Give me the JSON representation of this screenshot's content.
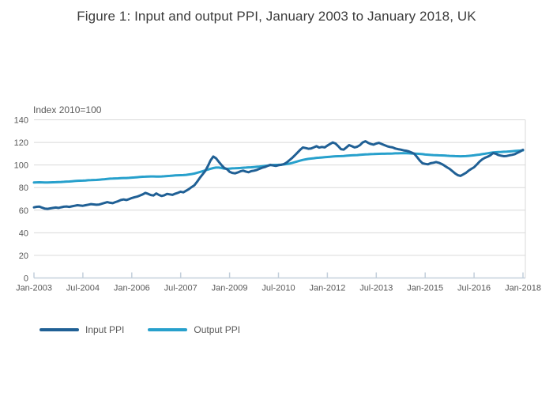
{
  "title": "Figure 1: Input and output PPI, January 2003 to January 2018, UK",
  "colors": {
    "input": "#206095",
    "output": "#27a0cc",
    "grid": "#d9d9d9",
    "axis": "#c3cfdb",
    "tick_text": "#595959"
  },
  "legend": [
    {
      "label": "Input PPI",
      "series": "input"
    },
    {
      "label": "Output PPI",
      "series": "output"
    }
  ],
  "chart_data": {
    "type": "line",
    "title": "Figure 1: Input and output PPI, January 2003 to January 2018, UK",
    "ylabel": "Index 2010=100",
    "xlabel": "",
    "ylim": [
      0,
      140
    ],
    "y_ticks": [
      0,
      20,
      40,
      60,
      80,
      100,
      120,
      140
    ],
    "x_tick_labels": [
      "Jan-2003",
      "Jul-2004",
      "Jan-2006",
      "Jul-2007",
      "Jan-2009",
      "Jul-2010",
      "Jan-2012",
      "Jul-2013",
      "Jan-2015",
      "Jul-2016",
      "Jan-2018"
    ],
    "x_tick_month_index": [
      0,
      18,
      36,
      54,
      72,
      90,
      108,
      126,
      144,
      162,
      180
    ],
    "x_months_total": 180,
    "grid": true,
    "legend_position": "bottom-left",
    "series": [
      {
        "name": "Input PPI",
        "color": "#206095",
        "x_start": "Jan-2003",
        "frequency": "monthly",
        "values": [
          62.5,
          63.0,
          63.2,
          62.2,
          61.4,
          61.2,
          61.6,
          62.0,
          62.4,
          62.0,
          62.6,
          63.1,
          63.3,
          62.9,
          63.4,
          63.9,
          64.4,
          64.1,
          63.9,
          64.4,
          64.9,
          65.4,
          65.1,
          64.8,
          65.0,
          65.7,
          66.4,
          67.1,
          66.6,
          66.2,
          67.2,
          68.0,
          69.0,
          69.5,
          69.0,
          69.8,
          70.8,
          71.5,
          72.0,
          73.0,
          74.0,
          75.3,
          74.5,
          73.4,
          73.0,
          74.8,
          73.5,
          72.6,
          73.2,
          74.4,
          74.0,
          73.6,
          74.6,
          75.4,
          76.4,
          75.8,
          77.2,
          78.6,
          80.4,
          82.0,
          85.0,
          88.5,
          91.5,
          94.5,
          99.0,
          104.0,
          107.5,
          106.0,
          103.0,
          100.0,
          97.5,
          96.4,
          94.0,
          93.0,
          92.6,
          93.4,
          94.4,
          95.0,
          94.2,
          93.6,
          94.6,
          95.0,
          95.6,
          96.6,
          97.6,
          98.2,
          99.2,
          100.2,
          99.6,
          99.2,
          99.8,
          100.2,
          100.8,
          102.2,
          104.2,
          106.2,
          108.5,
          111.0,
          113.5,
          115.5,
          115.0,
          114.4,
          114.6,
          115.6,
          116.6,
          115.4,
          116.0,
          115.6,
          117.2,
          118.6,
          120.0,
          119.0,
          116.6,
          114.0,
          113.6,
          115.6,
          117.6,
          116.6,
          115.6,
          116.2,
          117.6,
          120.0,
          121.0,
          119.6,
          118.6,
          118.0,
          119.0,
          119.6,
          118.6,
          117.6,
          116.6,
          116.0,
          115.6,
          114.6,
          114.0,
          113.6,
          113.0,
          112.6,
          112.0,
          111.0,
          110.0,
          107.0,
          104.0,
          101.6,
          101.0,
          100.6,
          101.6,
          102.0,
          102.6,
          102.0,
          101.0,
          99.6,
          98.0,
          96.6,
          94.6,
          92.6,
          91.0,
          90.4,
          91.6,
          93.0,
          95.0,
          96.6,
          98.0,
          100.4,
          103.0,
          105.0,
          106.4,
          107.4,
          108.6,
          110.6,
          110.0,
          108.8,
          108.2,
          107.8,
          108.0,
          108.6,
          109.0,
          109.6,
          110.8,
          112.0,
          113.5
        ]
      },
      {
        "name": "Output PPI",
        "color": "#27a0cc",
        "x_start": "Jan-2003",
        "frequency": "monthly",
        "values": [
          84.5,
          84.6,
          84.7,
          84.6,
          84.5,
          84.5,
          84.6,
          84.7,
          84.8,
          84.9,
          85.0,
          85.1,
          85.3,
          85.4,
          85.6,
          85.8,
          86.0,
          86.1,
          86.2,
          86.3,
          86.5,
          86.6,
          86.7,
          86.8,
          87.0,
          87.2,
          87.4,
          87.7,
          87.9,
          88.0,
          88.1,
          88.2,
          88.4,
          88.5,
          88.5,
          88.6,
          88.8,
          89.0,
          89.2,
          89.4,
          89.6,
          89.7,
          89.8,
          89.9,
          89.9,
          89.8,
          89.8,
          89.9,
          90.0,
          90.2,
          90.4,
          90.6,
          90.8,
          90.9,
          91.0,
          91.1,
          91.3,
          91.6,
          92.0,
          92.4,
          93.0,
          93.7,
          94.4,
          95.2,
          96.0,
          96.7,
          97.3,
          97.7,
          97.7,
          97.4,
          96.9,
          96.6,
          96.8,
          97.0,
          97.1,
          97.2,
          97.4,
          97.6,
          97.7,
          97.9,
          98.0,
          98.2,
          98.4,
          98.6,
          98.9,
          99.2,
          99.5,
          99.8,
          100.0,
          100.1,
          100.2,
          100.3,
          100.5,
          100.8,
          101.2,
          101.8,
          102.5,
          103.2,
          103.9,
          104.5,
          105.0,
          105.4,
          105.7,
          106.0,
          106.3,
          106.5,
          106.7,
          106.9,
          107.1,
          107.3,
          107.5,
          107.7,
          107.8,
          107.9,
          108.0,
          108.2,
          108.4,
          108.6,
          108.7,
          108.8,
          109.0,
          109.2,
          109.4,
          109.5,
          109.6,
          109.7,
          109.8,
          109.9,
          110.0,
          110.0,
          110.1,
          110.1,
          110.2,
          110.3,
          110.3,
          110.4,
          110.4,
          110.4,
          110.3,
          110.2,
          110.1,
          110.0,
          109.8,
          109.6,
          109.3,
          109.1,
          108.9,
          108.8,
          108.7,
          108.6,
          108.5,
          108.4,
          108.2,
          108.1,
          108.0,
          107.9,
          107.8,
          107.7,
          107.8,
          107.9,
          108.1,
          108.3,
          108.6,
          108.9,
          109.2,
          109.6,
          110.0,
          110.4,
          110.8,
          111.1,
          111.3,
          111.5,
          111.6,
          111.7,
          111.8,
          112.0,
          112.2,
          112.4,
          112.6,
          112.8,
          113.0
        ]
      }
    ]
  }
}
